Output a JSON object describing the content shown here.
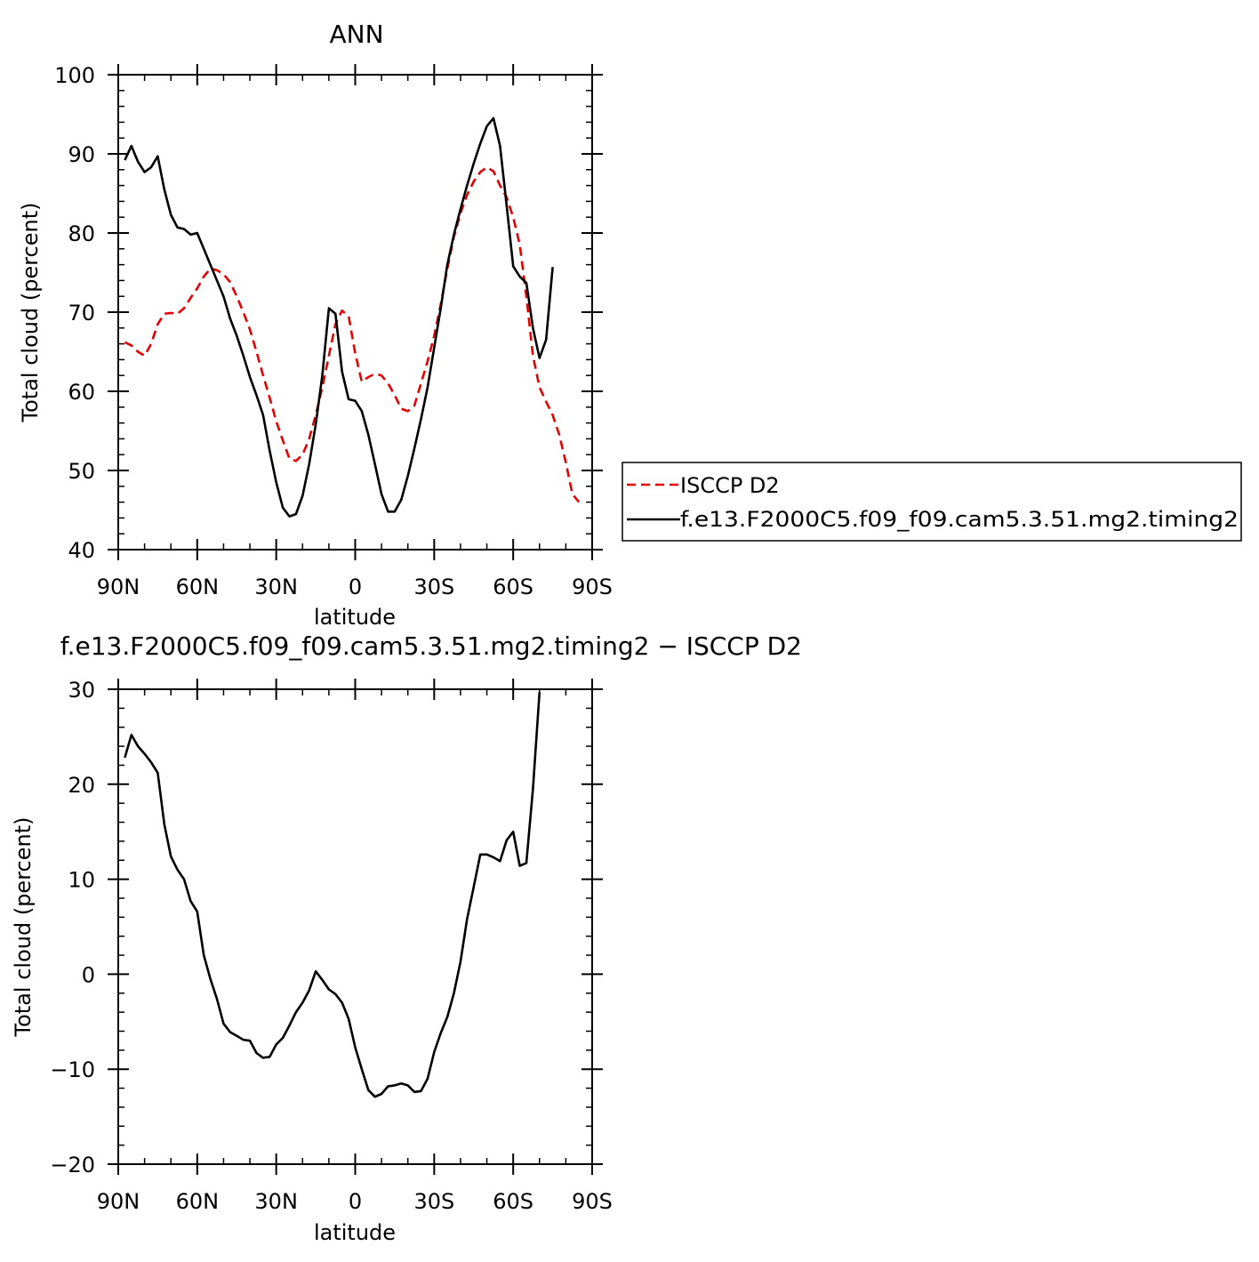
{
  "chart_data": [
    {
      "type": "line",
      "title": "ANN",
      "xlabel": "latitude",
      "ylabel": "Total cloud (percent)",
      "ylim": [
        40,
        100
      ],
      "xlim": [
        -90,
        90
      ],
      "x_direction": "north-to-south",
      "yticks": [
        "40",
        "50",
        "60",
        "70",
        "80",
        "90",
        "100"
      ],
      "xticks": [
        {
          "lat": -90,
          "label": "90N"
        },
        {
          "lat": -60,
          "label": "60N"
        },
        {
          "lat": -30,
          "label": "30N"
        },
        {
          "lat": 0,
          "label": "0"
        },
        {
          "lat": 30,
          "label": "30S"
        },
        {
          "lat": 60,
          "label": "60S"
        },
        {
          "lat": 90,
          "label": "90S"
        }
      ],
      "legend_position": "right",
      "series": [
        {
          "name": "ISCCP D2",
          "color": "#e60000",
          "dash": "dashed",
          "points": [
            [
              -87.5,
              66.2
            ],
            [
              -85,
              65.8
            ],
            [
              -82.5,
              65.0
            ],
            [
              -80,
              64.5
            ],
            [
              -77.5,
              66.0
            ],
            [
              -75,
              68.5
            ],
            [
              -72.5,
              69.8
            ],
            [
              -70,
              69.9
            ],
            [
              -67.5,
              69.8
            ],
            [
              -65,
              70.5
            ],
            [
              -62.5,
              71.8
            ],
            [
              -60,
              73.0
            ],
            [
              -57.5,
              74.5
            ],
            [
              -55,
              75.5
            ],
            [
              -52.5,
              75.3
            ],
            [
              -50,
              74.8
            ],
            [
              -47.5,
              73.8
            ],
            [
              -45,
              72.0
            ],
            [
              -42.5,
              70.0
            ],
            [
              -40,
              67.8
            ],
            [
              -37.5,
              65.0
            ],
            [
              -35,
              62.0
            ],
            [
              -32.5,
              59.2
            ],
            [
              -30,
              56.2
            ],
            [
              -27.5,
              53.8
            ],
            [
              -25,
              51.5
            ],
            [
              -22.5,
              51.2
            ],
            [
              -20,
              52.0
            ],
            [
              -17.5,
              54.0
            ],
            [
              -15,
              57.0
            ],
            [
              -12.5,
              60.5
            ],
            [
              -10,
              64.5
            ],
            [
              -7.5,
              68.5
            ],
            [
              -5,
              70.2
            ],
            [
              -2.5,
              69.5
            ],
            [
              0,
              64.8
            ],
            [
              2.5,
              61.2
            ],
            [
              5,
              61.8
            ],
            [
              7.5,
              62.2
            ],
            [
              10,
              62.0
            ],
            [
              12.5,
              61.0
            ],
            [
              15,
              59.5
            ],
            [
              17.5,
              57.8
            ],
            [
              20,
              57.5
            ],
            [
              22.5,
              58.2
            ],
            [
              25,
              61.0
            ],
            [
              27.5,
              63.8
            ],
            [
              30,
              67.0
            ],
            [
              32.5,
              71.0
            ],
            [
              35,
              75.5
            ],
            [
              37.5,
              79.5
            ],
            [
              40,
              82.5
            ],
            [
              42.5,
              84.8
            ],
            [
              45,
              86.5
            ],
            [
              47.5,
              87.7
            ],
            [
              50,
              88.3
            ],
            [
              52.5,
              87.8
            ],
            [
              55,
              86.0
            ],
            [
              57.5,
              84.5
            ],
            [
              60,
              82.0
            ],
            [
              62.5,
              78.5
            ],
            [
              65,
              72.0
            ],
            [
              67.5,
              64.5
            ],
            [
              70,
              60.5
            ],
            [
              72.5,
              58.7
            ],
            [
              75,
              57.0
            ],
            [
              77.5,
              54.5
            ],
            [
              80,
              51.0
            ],
            [
              82.5,
              47.0
            ],
            [
              85,
              46.0
            ]
          ]
        },
        {
          "name": "f.e13.F2000C5.f09_f09.cam5.3.51.mg2.timing2",
          "color": "#000000",
          "dash": "solid",
          "points": [
            [
              -87.5,
              89.2
            ],
            [
              -85,
              91.0
            ],
            [
              -82.5,
              89.0
            ],
            [
              -80,
              87.7
            ],
            [
              -77.5,
              88.3
            ],
            [
              -75,
              89.7
            ],
            [
              -72.5,
              85.5
            ],
            [
              -70,
              82.3
            ],
            [
              -67.5,
              80.7
            ],
            [
              -65,
              80.5
            ],
            [
              -62.5,
              79.8
            ],
            [
              -60,
              80.0
            ],
            [
              -57.5,
              78.0
            ],
            [
              -55,
              76.0
            ],
            [
              -52.5,
              74.0
            ],
            [
              -50,
              72.0
            ],
            [
              -47.5,
              69.2
            ],
            [
              -45,
              67.0
            ],
            [
              -42.5,
              64.5
            ],
            [
              -40,
              61.8
            ],
            [
              -37.5,
              59.5
            ],
            [
              -35,
              57.0
            ],
            [
              -32.5,
              52.5
            ],
            [
              -30,
              48.5
            ],
            [
              -27.5,
              45.3
            ],
            [
              -25,
              44.2
            ],
            [
              -22.5,
              44.5
            ],
            [
              -20,
              46.8
            ],
            [
              -17.5,
              50.8
            ],
            [
              -15,
              55.8
            ],
            [
              -12.5,
              62.0
            ],
            [
              -10,
              70.5
            ],
            [
              -7.5,
              69.8
            ],
            [
              -5,
              62.5
            ],
            [
              -2.5,
              59.0
            ],
            [
              0,
              58.8
            ],
            [
              2.5,
              57.5
            ],
            [
              5,
              54.5
            ],
            [
              7.5,
              50.8
            ],
            [
              10,
              47.0
            ],
            [
              12.5,
              44.8
            ],
            [
              15,
              44.8
            ],
            [
              17.5,
              46.3
            ],
            [
              20,
              49.3
            ],
            [
              22.5,
              52.8
            ],
            [
              25,
              56.5
            ],
            [
              27.5,
              60.5
            ],
            [
              30,
              65.5
            ],
            [
              32.5,
              70.5
            ],
            [
              35,
              76.0
            ],
            [
              37.5,
              79.8
            ],
            [
              40,
              83.0
            ],
            [
              42.5,
              86.0
            ],
            [
              45,
              88.8
            ],
            [
              47.5,
              91.3
            ],
            [
              50,
              93.5
            ],
            [
              52.5,
              94.5
            ],
            [
              55,
              91.0
            ],
            [
              57.5,
              83.5
            ],
            [
              60,
              75.8
            ],
            [
              62.5,
              74.5
            ],
            [
              65,
              73.7
            ],
            [
              67.5,
              68.0
            ],
            [
              70,
              64.2
            ],
            [
              72.5,
              66.5
            ],
            [
              75,
              75.7
            ]
          ]
        }
      ]
    },
    {
      "type": "line",
      "title": "f.e13.F2000C5.f09_f09.cam5.3.51.mg2.timing2 − ISCCP D2",
      "xlabel": "latitude",
      "ylabel": "Total cloud (percent)",
      "ylim": [
        -20,
        30
      ],
      "xlim": [
        -90,
        90
      ],
      "x_direction": "north-to-south",
      "yticks": [
        "−20",
        "−10",
        "0",
        "10",
        "20",
        "30"
      ],
      "xticks": [
        {
          "lat": -90,
          "label": "90N"
        },
        {
          "lat": -60,
          "label": "60N"
        },
        {
          "lat": -30,
          "label": "30N"
        },
        {
          "lat": 0,
          "label": "0"
        },
        {
          "lat": 30,
          "label": "30S"
        },
        {
          "lat": 60,
          "label": "60S"
        },
        {
          "lat": 90,
          "label": "90S"
        }
      ],
      "series": [
        {
          "color": "#000000",
          "dash": "solid",
          "points": [
            [
              -87.5,
              22.8
            ],
            [
              -85,
              25.2
            ],
            [
              -82.5,
              24.0
            ],
            [
              -80,
              23.2
            ],
            [
              -77.5,
              22.3
            ],
            [
              -75,
              21.2
            ],
            [
              -72.5,
              15.8
            ],
            [
              -70,
              12.4
            ],
            [
              -67.5,
              11.0
            ],
            [
              -65,
              10.0
            ],
            [
              -62.5,
              7.7
            ],
            [
              -60,
              6.6
            ],
            [
              -57.5,
              2.0
            ],
            [
              -55,
              -0.5
            ],
            [
              -52.5,
              -2.6
            ],
            [
              -50,
              -5.2
            ],
            [
              -47.5,
              -6.1
            ],
            [
              -45,
              -6.5
            ],
            [
              -42.5,
              -6.9
            ],
            [
              -40,
              -7.0
            ],
            [
              -37.5,
              -8.3
            ],
            [
              -35,
              -8.8
            ],
            [
              -32.5,
              -8.7
            ],
            [
              -30,
              -7.4
            ],
            [
              -27.5,
              -6.7
            ],
            [
              -25,
              -5.4
            ],
            [
              -22.5,
              -4.0
            ],
            [
              -20,
              -3.0
            ],
            [
              -17.5,
              -1.7
            ],
            [
              -15,
              0.3
            ],
            [
              -12.5,
              -0.6
            ],
            [
              -10,
              -1.6
            ],
            [
              -7.5,
              -2.1
            ],
            [
              -5,
              -3.0
            ],
            [
              -2.5,
              -4.7
            ],
            [
              0,
              -7.7
            ],
            [
              2.5,
              -10.0
            ],
            [
              5,
              -12.2
            ],
            [
              7.5,
              -12.9
            ],
            [
              10,
              -12.6
            ],
            [
              12.5,
              -11.8
            ],
            [
              15,
              -11.7
            ],
            [
              17.5,
              -11.5
            ],
            [
              20,
              -11.7
            ],
            [
              22.5,
              -12.4
            ],
            [
              25,
              -12.3
            ],
            [
              27.5,
              -11.0
            ],
            [
              30,
              -8.2
            ],
            [
              32.5,
              -6.2
            ],
            [
              35,
              -4.5
            ],
            [
              37.5,
              -2.0
            ],
            [
              40,
              1.3
            ],
            [
              42.5,
              5.8
            ],
            [
              45,
              9.2
            ],
            [
              47.5,
              12.6
            ],
            [
              50,
              12.6
            ],
            [
              52.5,
              12.3
            ],
            [
              55,
              11.9
            ],
            [
              57.5,
              14.1
            ],
            [
              60,
              15.0
            ],
            [
              62.5,
              11.4
            ],
            [
              65,
              11.7
            ],
            [
              67.5,
              19.5
            ],
            [
              70,
              29.7
            ]
          ]
        }
      ]
    }
  ]
}
